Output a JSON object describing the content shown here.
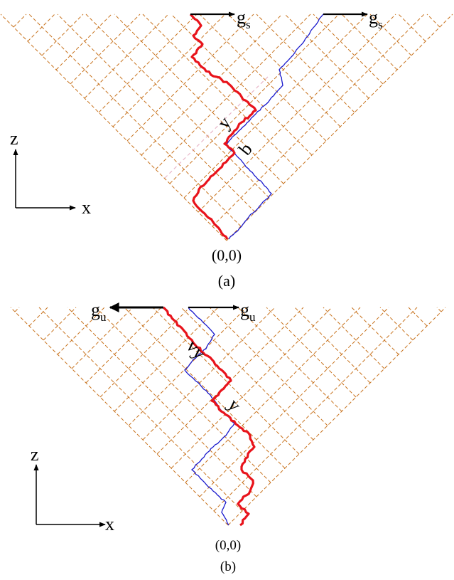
{
  "colors": {
    "lattice": "#c8731e",
    "path_thick": "#e8131b",
    "path_thin": "#1a1acd",
    "guide": "#e8b6c8",
    "ink": "#000000"
  },
  "panel_a": {
    "caption": "(a)",
    "origin_label": "(0,0)",
    "arrow_left": {
      "base": "g",
      "subscript": "s"
    },
    "arrow_right": {
      "base": "g",
      "subscript": "s"
    },
    "mark_y": "y",
    "mark_b": "b",
    "axis_vertical": "z",
    "axis_horizontal": "x"
  },
  "panel_b": {
    "caption": "(b)",
    "origin_label": "(0,0)",
    "arrow_left": {
      "base": "g",
      "subscript": "u"
    },
    "arrow_right": {
      "base": "g",
      "subscript": "u"
    },
    "mark_vy": "vy",
    "mark_y": "y",
    "axis_vertical": "z",
    "axis_horizontal": "x"
  }
}
